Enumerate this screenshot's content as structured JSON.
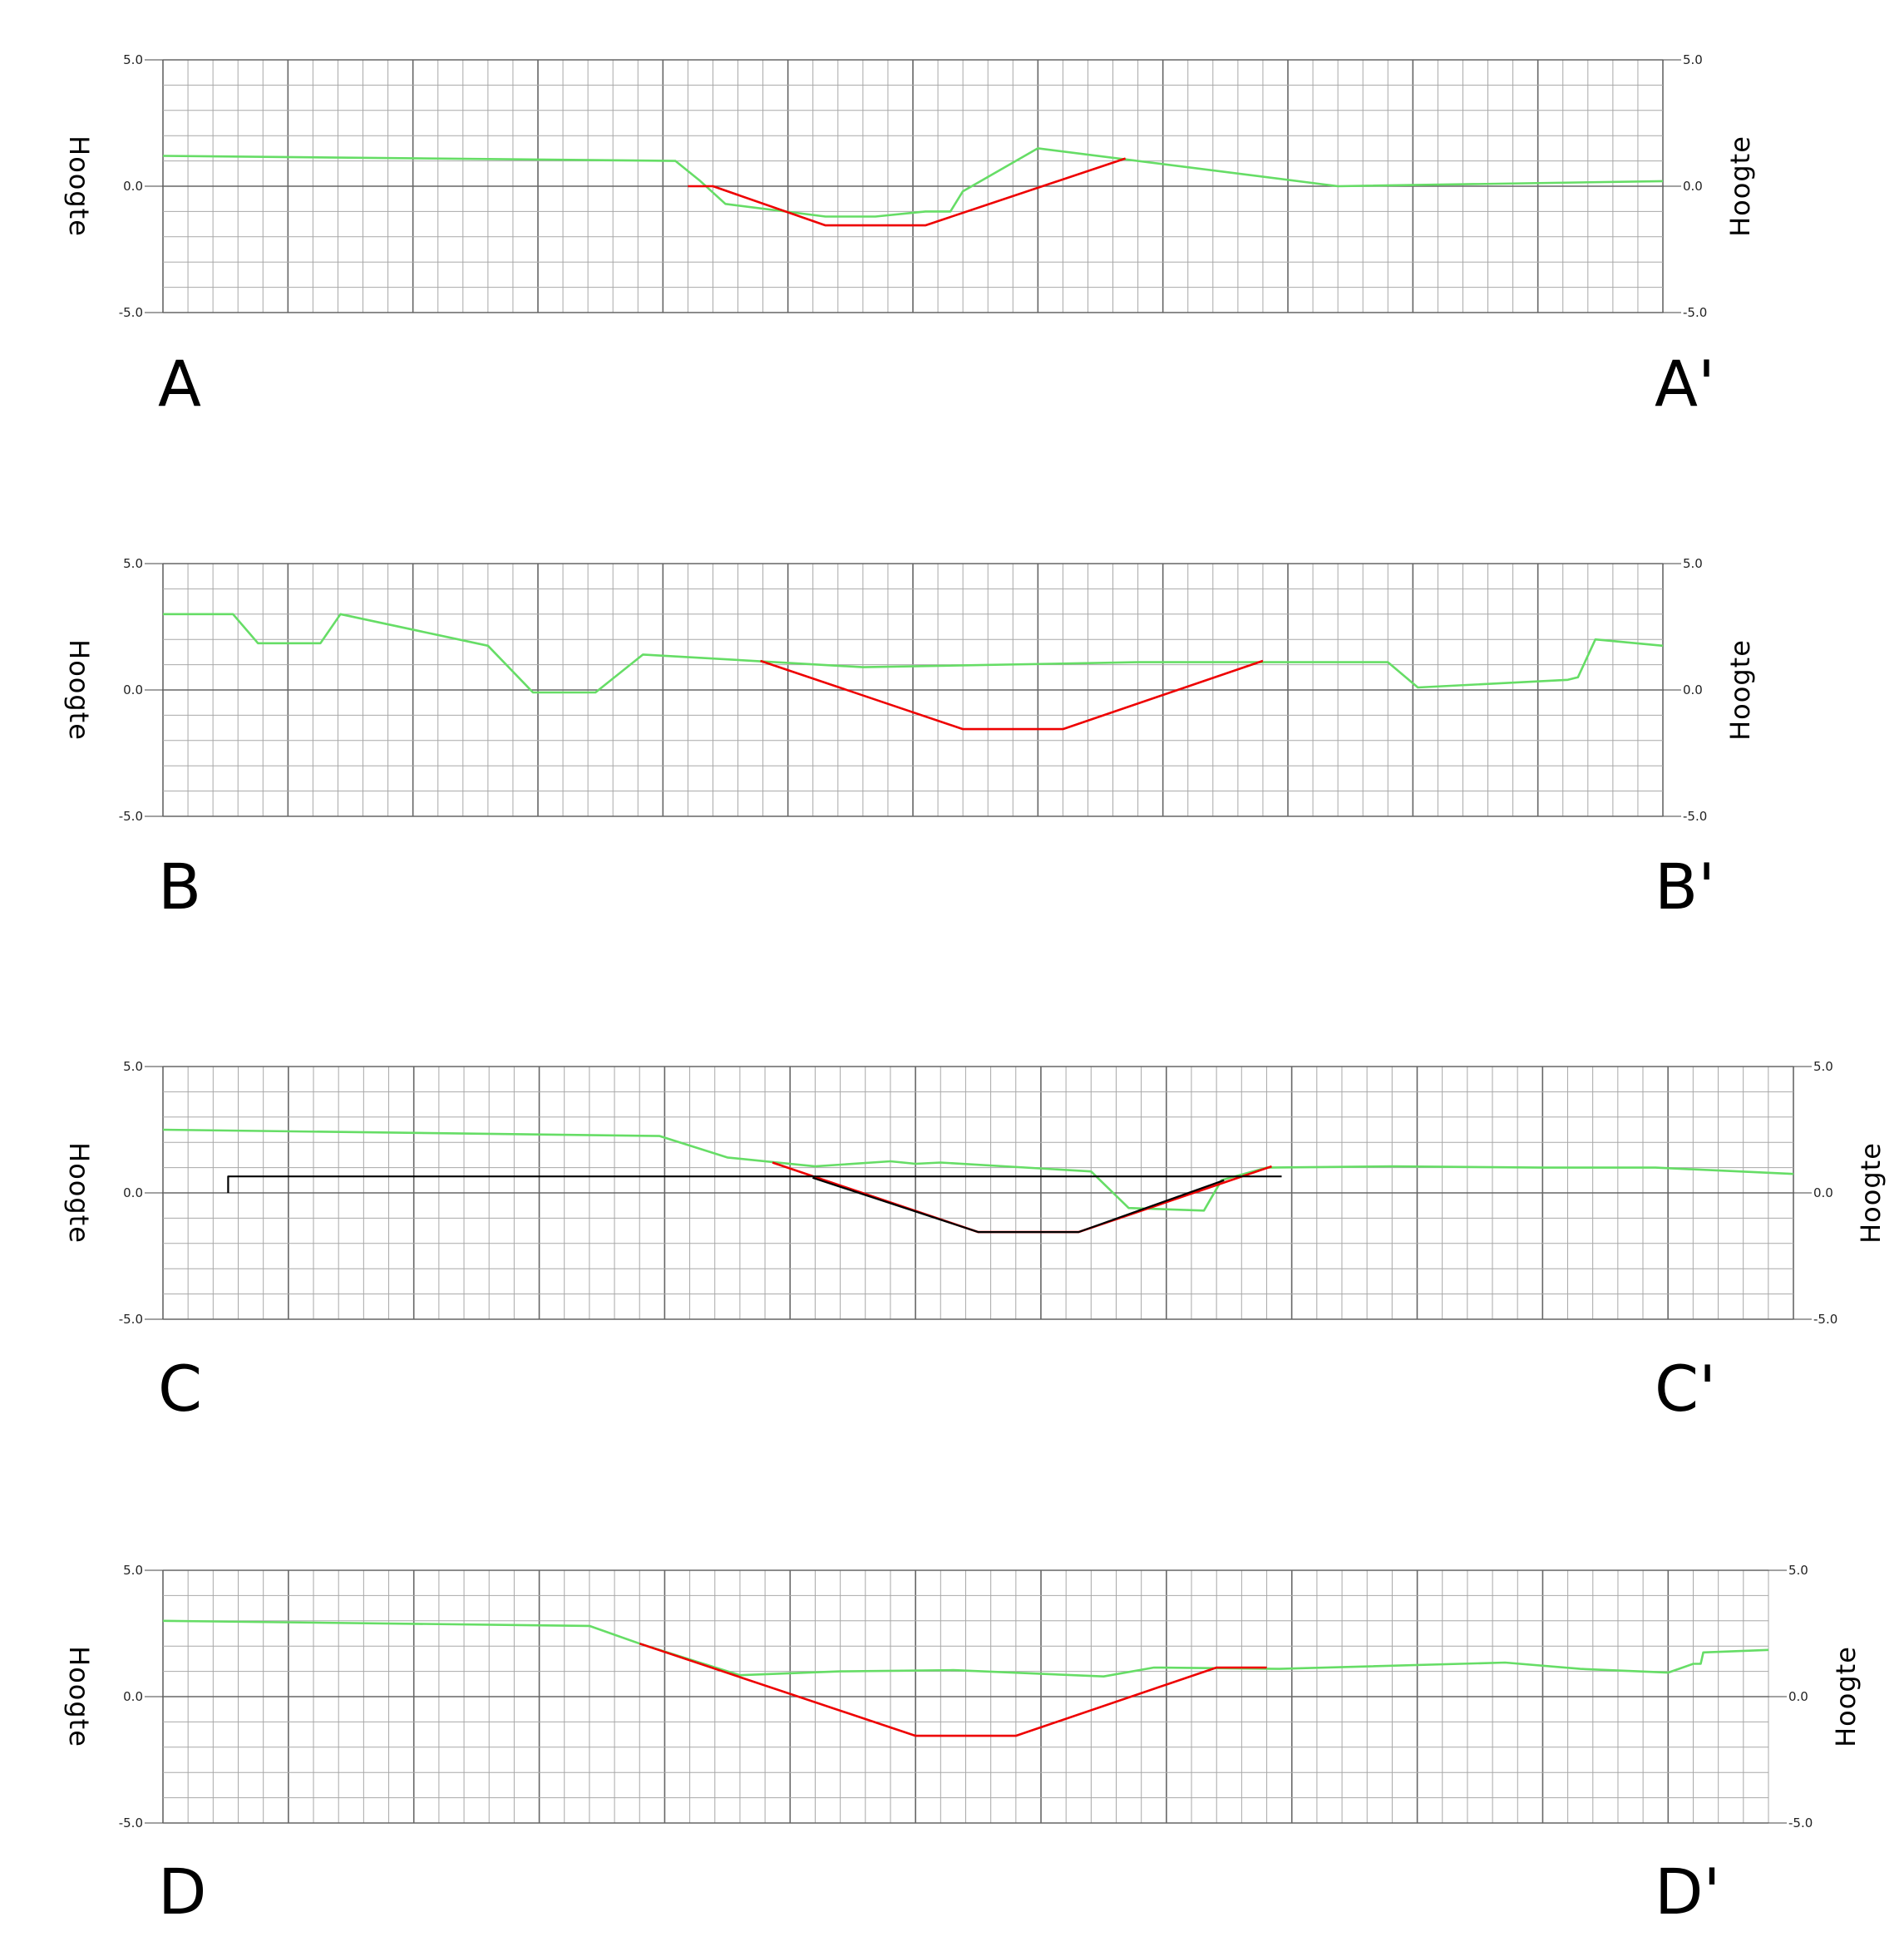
{
  "chart_data": [
    {
      "type": "line",
      "title": "",
      "section_start": "A",
      "section_end": "A'",
      "ylabel_left": "Hoogte",
      "ylabel_right": "Hoogte",
      "ylim": [
        -5,
        5
      ],
      "ytick_labels": [
        "5.0",
        "0.0",
        "-5.0"
      ],
      "grid": true,
      "xlim": [
        0,
        60
      ],
      "colors": {
        "terrain": "#66dd66",
        "design": "#ee0000"
      },
      "series": [
        {
          "key": "terrain",
          "values": [
            [
              0,
              1.2
            ],
            [
              20.5,
              1.0
            ],
            [
              21.5,
              0.2
            ],
            [
              22.5,
              -0.7
            ],
            [
              26.5,
              -1.2
            ],
            [
              28.5,
              -1.2
            ],
            [
              30.5,
              -1.0
            ],
            [
              31.5,
              -1.0
            ],
            [
              32,
              -0.2
            ],
            [
              35,
              1.5
            ],
            [
              47,
              0.0
            ],
            [
              60,
              0.2
            ]
          ]
        },
        {
          "key": "design",
          "values": [
            [
              21,
              0.0
            ],
            [
              22,
              0.0
            ],
            [
              26.5,
              -1.55
            ],
            [
              30.5,
              -1.55
            ],
            [
              38.5,
              1.1
            ]
          ]
        }
      ]
    },
    {
      "type": "line",
      "title": "",
      "section_start": "B",
      "section_end": "B'",
      "ylabel_left": "Hoogte",
      "ylabel_right": "Hoogte",
      "ylim": [
        -5,
        5
      ],
      "ytick_labels": [
        "5.0",
        "0.0",
        "-5.0"
      ],
      "grid": true,
      "xlim": [
        0,
        60
      ],
      "colors": {
        "terrain": "#66dd66",
        "design": "#ee0000"
      },
      "series": [
        {
          "key": "terrain",
          "values": [
            [
              0,
              3.0
            ],
            [
              2.8,
              3.0
            ],
            [
              3.8,
              1.85
            ],
            [
              6.3,
              1.85
            ],
            [
              7.1,
              3.0
            ],
            [
              13,
              1.75
            ],
            [
              14.8,
              -0.1
            ],
            [
              17.3,
              -0.1
            ],
            [
              19.2,
              1.4
            ],
            [
              28,
              0.9
            ],
            [
              39,
              1.1
            ],
            [
              49,
              1.1
            ],
            [
              50.2,
              0.1
            ],
            [
              56.2,
              0.4
            ],
            [
              56.6,
              0.5
            ],
            [
              57.3,
              2.0
            ],
            [
              60,
              1.75
            ]
          ]
        },
        {
          "key": "design",
          "values": [
            [
              23.9,
              1.15
            ],
            [
              32,
              -1.55
            ],
            [
              36,
              -1.55
            ],
            [
              44,
              1.15
            ]
          ]
        }
      ]
    },
    {
      "type": "line",
      "title": "",
      "section_start": "C",
      "section_end": "C'",
      "ylabel_left": "Hoogte",
      "ylabel_right": "Hoogte",
      "ylim": [
        -5,
        5
      ],
      "ytick_labels": [
        "5.0",
        "0.0",
        "-5.0"
      ],
      "grid": true,
      "xlim": [
        0,
        65
      ],
      "colors": {
        "terrain": "#66dd66",
        "design": "#ee0000",
        "reference": "#000000"
      },
      "series": [
        {
          "key": "terrain",
          "values": [
            [
              0,
              2.5
            ],
            [
              19.8,
              2.25
            ],
            [
              22.5,
              1.4
            ],
            [
              26,
              1.05
            ],
            [
              29,
              1.25
            ],
            [
              30,
              1.15
            ],
            [
              31,
              1.2
            ],
            [
              37,
              0.85
            ],
            [
              38.5,
              -0.6
            ],
            [
              41.5,
              -0.7
            ],
            [
              42.2,
              0.5
            ],
            [
              44,
              1.0
            ],
            [
              49,
              1.05
            ],
            [
              55,
              1.0
            ],
            [
              59.5,
              1.0
            ],
            [
              65,
              0.75
            ]
          ]
        },
        {
          "key": "design",
          "values": [
            [
              24.3,
              1.2
            ],
            [
              32.5,
              -1.55
            ],
            [
              36.5,
              -1.55
            ],
            [
              44.2,
              1.05
            ]
          ]
        },
        {
          "key": "reference",
          "values": [
            [
              2.6,
              0.0
            ],
            [
              2.6,
              0.65
            ],
            [
              44.6,
              0.65
            ]
          ]
        },
        {
          "key": "reference",
          "values": [
            [
              25.9,
              0.6
            ],
            [
              32.5,
              -1.55
            ],
            [
              36.5,
              -1.55
            ],
            [
              42.3,
              0.5
            ]
          ]
        }
      ]
    },
    {
      "type": "line",
      "title": "",
      "section_start": "D",
      "section_end": "D'",
      "ylabel_left": "Hoogte",
      "ylabel_right": "Hoogte",
      "ylim": [
        -5,
        5
      ],
      "ytick_labels": [
        "5.0",
        "0.0",
        "-5.0"
      ],
      "grid": true,
      "xlim": [
        0,
        64
      ],
      "colors": {
        "terrain": "#66dd66",
        "design": "#ee0000"
      },
      "series": [
        {
          "key": "terrain",
          "values": [
            [
              0,
              3.0
            ],
            [
              17,
              2.8
            ],
            [
              19,
              2.1
            ],
            [
              23,
              0.85
            ],
            [
              27,
              1.0
            ],
            [
              31.5,
              1.05
            ],
            [
              37.5,
              0.8
            ],
            [
              39.5,
              1.15
            ],
            [
              44.5,
              1.1
            ],
            [
              53.5,
              1.35
            ],
            [
              56.5,
              1.1
            ],
            [
              60,
              0.95
            ],
            [
              61,
              1.3
            ],
            [
              61.3,
              1.3
            ],
            [
              61.4,
              1.75
            ],
            [
              64,
              1.85
            ]
          ]
        },
        {
          "key": "design",
          "values": [
            [
              19,
              2.1
            ],
            [
              30,
              -1.55
            ],
            [
              34,
              -1.55
            ],
            [
              42,
              1.15
            ],
            [
              44,
              1.15
            ]
          ]
        }
      ]
    }
  ]
}
